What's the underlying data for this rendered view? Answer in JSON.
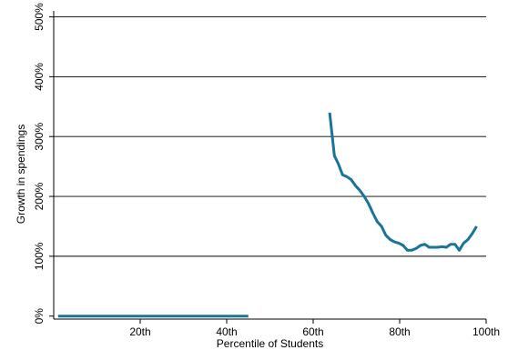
{
  "chart_data": {
    "type": "line",
    "title": "",
    "xlabel": "Percentile of Students",
    "ylabel": "Growth in spendings",
    "xlim": [
      0,
      100
    ],
    "ylim": [
      -5,
      510
    ],
    "x_ticks": [
      20,
      40,
      60,
      80,
      100
    ],
    "x_tick_labels": [
      "20th",
      "40th",
      "60th",
      "80th",
      "100th"
    ],
    "y_ticks": [
      0,
      100,
      200,
      300,
      400,
      500
    ],
    "y_tick_labels": [
      "0%",
      "100%",
      "200%",
      "300%",
      "400%",
      "500%"
    ],
    "grid": "horizontal",
    "legend": "none",
    "colors": {
      "line": "#1a7399",
      "grid": "#000000",
      "axis": "#000000"
    },
    "series": [
      {
        "segments": [
          {
            "x": [
              1,
              45
            ],
            "y": [
              0,
              0
            ]
          },
          {
            "x": [
              63.8,
              64.9,
              65.8,
              66.8,
              67.8,
              68.8,
              69.8,
              70.8,
              71.8,
              72.8,
              73.8,
              74.8,
              75.8,
              76.8,
              77.8,
              78.8,
              79.8,
              80.8,
              81.8,
              82.8,
              83.8,
              84.8,
              85.8,
              86.8,
              87.8,
              88.8,
              89.8,
              90.8,
              91.8,
              92.8,
              93.8,
              94.8,
              95.8,
              96.8,
              97.8
            ],
            "y": [
              340,
              268,
              255,
              236,
              233,
              228,
              218,
              210,
              200,
              188,
              172,
              158,
              150,
              135,
              128,
              124,
              122,
              118,
              110,
              110,
              113,
              118,
              120,
              115,
              115,
              115,
              116,
              115,
              120,
              120,
              110,
              122,
              128,
              138,
              150
            ]
          }
        ]
      }
    ]
  }
}
